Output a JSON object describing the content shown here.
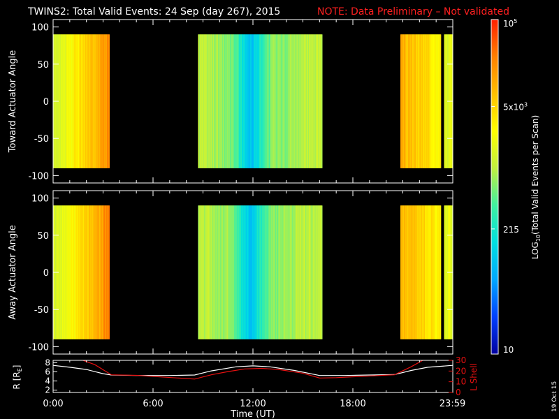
{
  "title": {
    "main": "TWINS2: Total Valid Events: 24 Sep (day 267), 2015",
    "note": "NOTE: Data Preliminary – Not validated",
    "note_color": "#ff2020"
  },
  "stamp": "19 Oct 15",
  "chart_data": [
    {
      "type": "heatmap",
      "name": "toward",
      "ylabel": "Toward Actuator Angle",
      "ylim": [
        -110,
        110
      ],
      "yticks": [
        100,
        50,
        0,
        -50,
        -100
      ],
      "angle_range": [
        -90,
        90
      ],
      "x_hours_range": [
        0,
        24
      ],
      "data_intervals_hours": [
        [
          -0.3,
          3.35
        ],
        [
          8.7,
          16.15
        ],
        [
          20.85,
          24.0
        ]
      ],
      "approx_profile_note": "colors show log10 events per scan"
    },
    {
      "type": "heatmap",
      "name": "away",
      "ylabel": "Away Actuator Angle",
      "ylim": [
        -110,
        110
      ],
      "yticks": [
        100,
        50,
        0,
        -50,
        -100
      ],
      "angle_range": [
        -90,
        90
      ],
      "x_hours_range": [
        0,
        24
      ],
      "data_intervals_hours": [
        [
          -0.3,
          3.35
        ],
        [
          8.7,
          16.15
        ],
        [
          20.85,
          24.0
        ]
      ]
    },
    {
      "type": "line",
      "name": "orbit",
      "ylabel": "R [R",
      "ylabel_sub": "E",
      "ylabel_end": "]",
      "ylim_left": [
        1.5,
        8.5
      ],
      "yticks_left": [
        8,
        6,
        4,
        2
      ],
      "ylabel_right": "L Shell",
      "ylim_right": [
        0,
        30
      ],
      "yticks_right": [
        30,
        20,
        10,
        0
      ],
      "xlabel": "Time (UT)",
      "xticks": [
        "0:00",
        "6:00",
        "12:00",
        "18:00",
        "23:59"
      ],
      "xtick_hours": [
        0,
        6,
        12,
        18,
        23.98
      ],
      "series": [
        {
          "color": "#ffffff",
          "x": [
            0,
            1,
            2,
            3,
            3.5,
            5,
            7,
            8.5,
            9.5,
            11,
            12,
            13,
            14.5,
            16,
            17.5,
            19,
            20.5,
            21.5,
            22.5,
            24
          ],
          "y": [
            7.4,
            7.0,
            6.5,
            5.6,
            5.3,
            5.2,
            5.2,
            5.3,
            6.2,
            7.1,
            7.3,
            7.1,
            6.3,
            5.2,
            5.2,
            5.3,
            5.4,
            6.3,
            7.0,
            7.4
          ]
        },
        {
          "color": "#e81010",
          "x": [
            1.8,
            2.5,
            3.5,
            5,
            6.5,
            8.5,
            9.5,
            10.5,
            11.5,
            12.5,
            13.5,
            15,
            16,
            17,
            18.5,
            20.5,
            21.5,
            22.2
          ],
          "y": [
            30,
            26,
            16.5,
            16,
            14.5,
            12.5,
            16.5,
            19.5,
            22,
            22.5,
            21.5,
            18,
            13.5,
            13.8,
            15,
            16.5,
            24,
            30
          ]
        }
      ]
    }
  ],
  "colorbar": {
    "label": "LOG",
    "label_sub": "10",
    "label_rest": "(Total Valid  Events per Scan)",
    "ticks": [
      {
        "base": "10",
        "sup": "5",
        "level": 1.0
      },
      {
        "base": "5x10",
        "sup": "3",
        "level": 0.74
      },
      {
        "base": "215",
        "sup": "",
        "level": 0.374
      },
      {
        "base": "10",
        "sup": "",
        "level": 0.0
      }
    ],
    "colors": [
      "#0000a0",
      "#0040ff",
      "#00a8ff",
      "#00e0e0",
      "#40f0a0",
      "#c0f040",
      "#ffff00",
      "#ffc000",
      "#ff8000",
      "#ff2000"
    ]
  }
}
